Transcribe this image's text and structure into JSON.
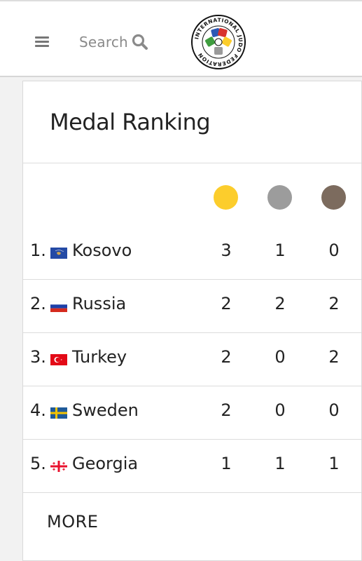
{
  "header": {
    "search_label": "Search",
    "logo_text": "INTERNATIONAL JUDO FEDERATION"
  },
  "ranking": {
    "title": "Medal Ranking",
    "medal_colors": {
      "gold": "#fccd2c",
      "silver": "#9c9c9c",
      "bronze": "#7c6b5e"
    },
    "rows": [
      {
        "rank": "1.",
        "country": "Kosovo",
        "flag": "kosovo-flag",
        "gold": "3",
        "silver": "1",
        "bronze": "0"
      },
      {
        "rank": "2.",
        "country": "Russia",
        "flag": "russia-flag",
        "gold": "2",
        "silver": "2",
        "bronze": "2"
      },
      {
        "rank": "3.",
        "country": "Turkey",
        "flag": "turkey-flag",
        "gold": "2",
        "silver": "0",
        "bronze": "2"
      },
      {
        "rank": "4.",
        "country": "Sweden",
        "flag": "sweden-flag",
        "gold": "2",
        "silver": "0",
        "bronze": "0"
      },
      {
        "rank": "5.",
        "country": "Georgia",
        "flag": "georgia-flag",
        "gold": "1",
        "silver": "1",
        "bronze": "1"
      }
    ],
    "more_label": "MORE"
  }
}
